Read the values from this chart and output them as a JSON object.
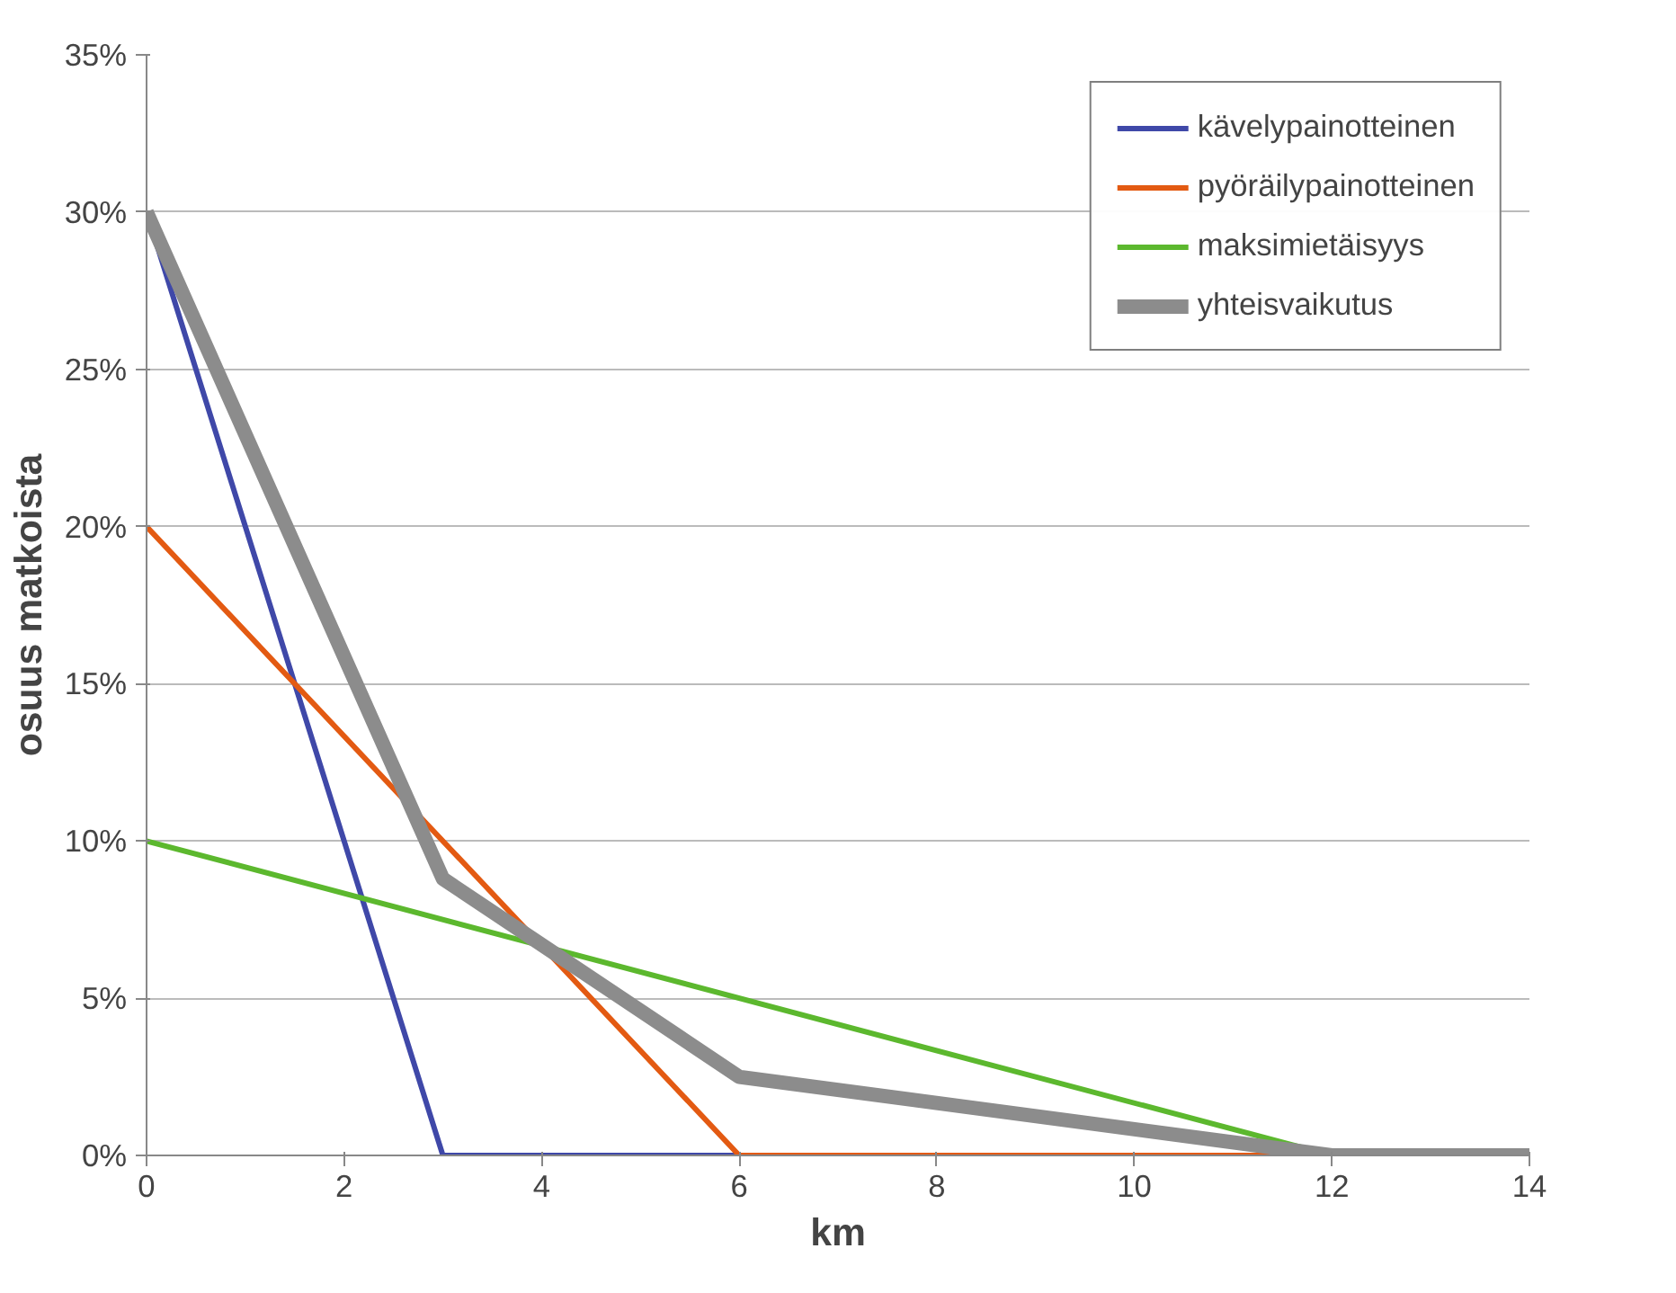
{
  "chart_data": {
    "type": "line",
    "xlabel": "km",
    "ylabel": "osuus matkoista",
    "xlim": [
      0,
      14
    ],
    "xticks": [
      0,
      2,
      4,
      6,
      8,
      10,
      12,
      14
    ],
    "ylim": [
      0,
      35
    ],
    "yticks": [
      {
        "value": 0,
        "label": "0%"
      },
      {
        "value": 5,
        "label": "5%"
      },
      {
        "value": 10,
        "label": "10%"
      },
      {
        "value": 15,
        "label": "15%"
      },
      {
        "value": 20,
        "label": "20%"
      },
      {
        "value": 25,
        "label": "25%"
      },
      {
        "value": 30,
        "label": "30%"
      },
      {
        "value": 35,
        "label": "35%"
      }
    ],
    "grid": "y",
    "legend": "top right",
    "marker": "none",
    "line_style": "solid",
    "series": [
      {
        "name": "kävelypainotteinen",
        "color": "#3f48a8",
        "x": [
          0,
          3,
          14
        ],
        "values": [
          30,
          0,
          0
        ]
      },
      {
        "name": "pyöräilypainotteinen",
        "color": "#e35a12",
        "x": [
          0,
          6,
          14
        ],
        "values": [
          20,
          0,
          0
        ]
      },
      {
        "name": "maksimietäisyys",
        "color": "#5cb82e",
        "x": [
          0,
          12,
          14
        ],
        "values": [
          10,
          0,
          0
        ]
      },
      {
        "name": "yhteisvaikutus",
        "color": "#8c8c8c",
        "x": [
          0,
          3,
          6,
          12,
          14
        ],
        "values": [
          30,
          8.8,
          2.5,
          0,
          0
        ]
      }
    ]
  }
}
